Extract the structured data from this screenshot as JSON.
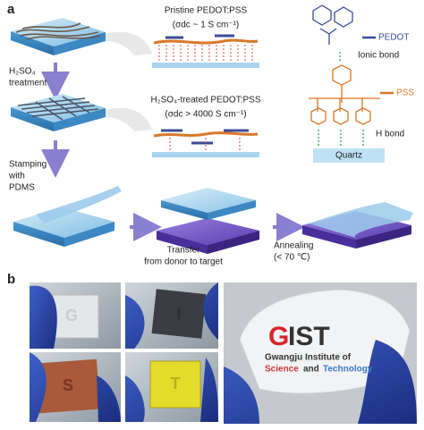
{
  "panel_a": {
    "label": "a",
    "step1": [
      "H₂SO₄",
      "treatment"
    ],
    "step2": [
      "Stamping",
      "with",
      "PDMS"
    ],
    "pristine": {
      "title": "Pristine PEDOT:PSS",
      "conductivity": "(σdc ~ 1 S cm⁻¹)"
    },
    "treated": {
      "title": "H₂SO₄-treated PEDOT:PSS",
      "conductivity": "(σdc > 4000 S cm⁻¹)"
    },
    "structure": {
      "pedot": "PEDOT",
      "ionic_bond": "Ionic bond",
      "pss": "PSS",
      "h_bond": "H bond",
      "substrate": "Quartz"
    },
    "transfer": [
      "Transfer",
      "from donor to target"
    ],
    "annealing": [
      "Annealing",
      "(< 70 ℃)"
    ]
  },
  "panel_b": {
    "label": "b",
    "letters": [
      "G",
      "I",
      "S",
      "T"
    ],
    "logo": [
      "G",
      "IST"
    ],
    "logo_line1": "Gwangju Institute of",
    "logo_line2": [
      "Science",
      "and",
      "Technology"
    ]
  }
}
